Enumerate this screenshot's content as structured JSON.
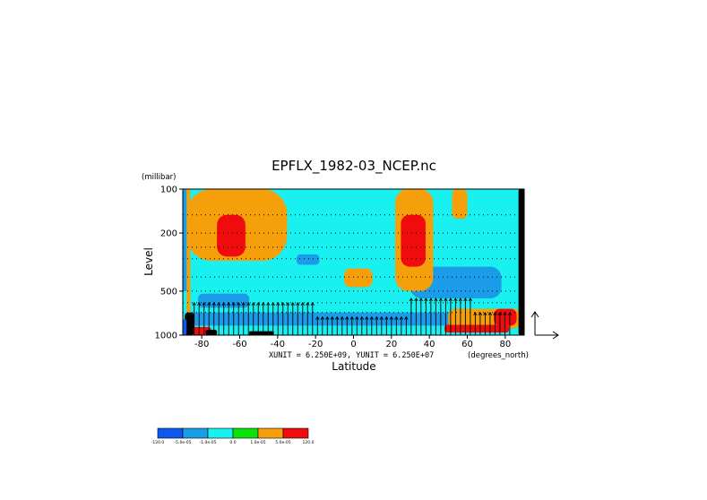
{
  "chart_data": {
    "type": "heatmap",
    "title": "EPFLX_1982-03_NCEP.nc",
    "xlabel": "Latitude",
    "ylabel": "Level",
    "yunit": "(millibar)",
    "xunit": "(degrees_north)",
    "vector_units": "XUNIT = 6.250E+09, YUNIT = 6.250E+07",
    "x_ticks": [
      "-80",
      "-60",
      "-40",
      "-20",
      "0",
      "20",
      "40",
      "60",
      "80"
    ],
    "y_ticks": [
      "100",
      "200",
      "500",
      "1000"
    ],
    "xlim": [
      -90,
      90
    ],
    "ylim": [
      1000,
      100
    ],
    "y_scale": "log",
    "legend": {
      "placement": "bottom-left",
      "labels": [
        "-120.0",
        "-5.0e-05",
        "-1.0e-05",
        "0.0",
        "1.0e-05",
        "5.0e-05",
        "120.0"
      ],
      "colors": [
        "#0f58ee",
        "#1a9ce8",
        "#19f0f0",
        "#0ee00e",
        "#f5a00a",
        "#f00c0c"
      ]
    },
    "background_class": "#19f0f0",
    "regions": [
      {
        "cls": 2,
        "x": [
          -82,
          85
        ],
        "y": [
          620,
          880
        ]
      },
      {
        "cls": 2,
        "x": [
          -85,
          -45
        ],
        "y": [
          430,
          620
        ]
      },
      {
        "cls": 2,
        "x": [
          -72,
          -50
        ],
        "y": [
          300,
          440
        ]
      },
      {
        "cls": 2,
        "x": [
          -38,
          -18
        ],
        "y": [
          250,
          420
        ]
      },
      {
        "cls": 2,
        "x": [
          28,
          83
        ],
        "y": [
          300,
          650
        ]
      },
      {
        "cls": 2,
        "x": [
          -10,
          12
        ],
        "y": [
          560,
          700
        ]
      },
      {
        "cls": 1,
        "x": [
          -88,
          85
        ],
        "y": [
          700,
          860
        ]
      },
      {
        "cls": 1,
        "x": [
          30,
          78
        ],
        "y": [
          340,
          560
        ]
      },
      {
        "cls": 1,
        "x": [
          -82,
          -55
        ],
        "y": [
          520,
          650
        ]
      },
      {
        "cls": 1,
        "x": [
          -30,
          -18
        ],
        "y": [
          280,
          330
        ]
      },
      {
        "cls": 4,
        "x": [
          -88,
          -35
        ],
        "y": [
          100,
          310
        ]
      },
      {
        "cls": 4,
        "x": [
          -5,
          10
        ],
        "y": [
          350,
          470
        ]
      },
      {
        "cls": 4,
        "x": [
          22,
          42
        ],
        "y": [
          100,
          500
        ]
      },
      {
        "cls": 4,
        "x": [
          52,
          60
        ],
        "y": [
          100,
          160
        ]
      },
      {
        "cls": 4,
        "x": [
          -88,
          -86
        ],
        "y": [
          100,
          1000
        ]
      },
      {
        "cls": 4,
        "x": [
          50,
          88
        ],
        "y": [
          660,
          900
        ]
      },
      {
        "cls": 5,
        "x": [
          -72,
          -57
        ],
        "y": [
          150,
          290
        ]
      },
      {
        "cls": 5,
        "x": [
          25,
          38
        ],
        "y": [
          150,
          340
        ]
      },
      {
        "cls": 5,
        "x": [
          -85,
          -75
        ],
        "y": [
          880,
          1000
        ]
      },
      {
        "cls": 5,
        "x": [
          48,
          82
        ],
        "y": [
          850,
          960
        ]
      },
      {
        "cls": 5,
        "x": [
          74,
          86
        ],
        "y": [
          660,
          860
        ]
      },
      {
        "cls": 6,
        "x": [
          -89,
          -84
        ],
        "y": [
          700,
          1000
        ]
      },
      {
        "cls": 6,
        "x": [
          -78,
          -72
        ],
        "y": [
          920,
          1000
        ]
      },
      {
        "cls": 6,
        "x": [
          -55,
          -42
        ],
        "y": [
          940,
          1000
        ]
      },
      {
        "cls": 6,
        "x": [
          87,
          90
        ],
        "y": [
          100,
          1000
        ]
      },
      {
        "cls": 1,
        "x": [
          -90,
          -88
        ],
        "y": [
          100,
          500
        ]
      },
      {
        "cls": 0,
        "x": [
          -90,
          -88
        ],
        "y": [
          780,
          1000
        ]
      }
    ],
    "dotted_levels": [
      150,
      200,
      250,
      300,
      400,
      500,
      600,
      700
    ],
    "vector_columns": {
      "lat_start": -84,
      "lat_end": 84,
      "lat_step": 2.6,
      "base_level": 1000,
      "groups": [
        {
          "x": [
            -84,
            -20
          ],
          "top": 600
        },
        {
          "x": [
            -20,
            30
          ],
          "top": 750
        },
        {
          "x": [
            30,
            62
          ],
          "top": 560
        },
        {
          "x": [
            62,
            84
          ],
          "top": 700
        }
      ]
    }
  }
}
